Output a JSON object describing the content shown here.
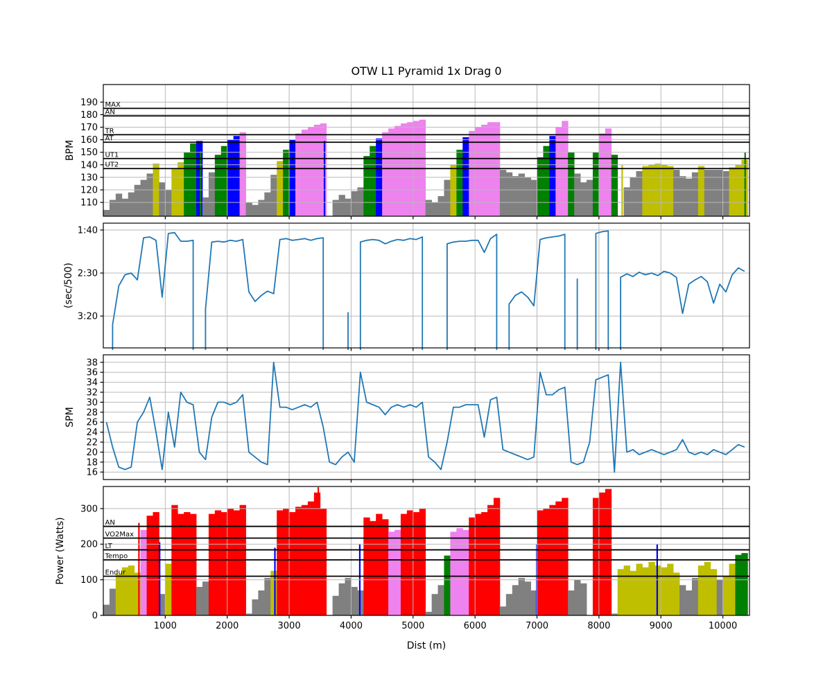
{
  "title": "OTW L1 Pyramid 1x Drag 0",
  "xlabel": "Dist (m)",
  "xlim": [
    0,
    10430
  ],
  "x_ticks": [
    1000,
    2000,
    3000,
    4000,
    5000,
    6000,
    7000,
    8000,
    9000,
    10000
  ],
  "bin_width_m": 100,
  "colors": {
    "zone_colors": [
      "#808080",
      "#bfbf00",
      "#008000",
      "#0000ff",
      "#ee82ee",
      "#ff0000"
    ],
    "line": "#1f77b4",
    "grid": "#b8b8b8",
    "threshold": "#000000",
    "spine": "#000000",
    "background": "#ffffff"
  },
  "chart_data": [
    {
      "id": "bpm",
      "type": "bar-zones",
      "ylabel": "BPM",
      "ylim": [
        99,
        204
      ],
      "yticks": [
        110,
        120,
        130,
        140,
        150,
        160,
        170,
        180,
        190
      ],
      "thresholds": [
        {
          "label": "MAX",
          "value": 185
        },
        {
          "label": "AN",
          "value": 179
        },
        {
          "label": "TR",
          "value": 164
        },
        {
          "label": "AT",
          "value": 158
        },
        {
          "label": "UT1",
          "value": 145
        },
        {
          "label": "UT2",
          "value": 137
        }
      ],
      "values": [
        104,
        112,
        117,
        113,
        118,
        124,
        128,
        133,
        141,
        126,
        120,
        137,
        142,
        150,
        157,
        159,
        114,
        134,
        148,
        155,
        160,
        163,
        166,
        110,
        108,
        112,
        118,
        132,
        143,
        152,
        160,
        165,
        168,
        170,
        172,
        173,
        0,
        112,
        116,
        113,
        119,
        122,
        147,
        155,
        161,
        166,
        169,
        171,
        173,
        174,
        175,
        176,
        112,
        110,
        115,
        128,
        140,
        152,
        162,
        167,
        170,
        172,
        174,
        174,
        136,
        134,
        131,
        133,
        130,
        128,
        146,
        155,
        163,
        170,
        175,
        150,
        133,
        126,
        128,
        150,
        165,
        169,
        148,
        0,
        122,
        130,
        135,
        139,
        140,
        141,
        140,
        139,
        136,
        131,
        129,
        134,
        139,
        136,
        136,
        136,
        135,
        138,
        140,
        144
      ],
      "spikes": [
        {
          "x": 1570,
          "v": 151
        },
        {
          "x": 3570,
          "v": 159
        },
        {
          "x": 8375,
          "v": 140
        },
        {
          "x": 10360,
          "v": 150
        }
      ]
    },
    {
      "id": "pace",
      "type": "line",
      "ylabel": "(sec/500)",
      "ylim": [
        92,
        237
      ],
      "inverted": true,
      "drop_to_bottom": true,
      "yticks": [
        {
          "v": 100,
          "label": "1:40"
        },
        {
          "v": 150,
          "label": "2:30"
        },
        {
          "v": 200,
          "label": "3:20"
        }
      ],
      "values": [
        null,
        210,
        165,
        152,
        150,
        158,
        109,
        108,
        112,
        178,
        104,
        103,
        113,
        113,
        112,
        null,
        192,
        114,
        113,
        114,
        112,
        113,
        111,
        172,
        183,
        176,
        171,
        174,
        111,
        110,
        112,
        111,
        110,
        112,
        110,
        109,
        null,
        null,
        null,
        196,
        null,
        114,
        112,
        111,
        112,
        116,
        113,
        111,
        112,
        110,
        111,
        108,
        null,
        null,
        null,
        116,
        114,
        113,
        113,
        112,
        112,
        126,
        110,
        105,
        null,
        186,
        176,
        172,
        178,
        188,
        111,
        109,
        108,
        107,
        105,
        null,
        157,
        null,
        null,
        104,
        102,
        101,
        null,
        155,
        151,
        154,
        149,
        152,
        150,
        153,
        148,
        150,
        155,
        197,
        163,
        158,
        154,
        160,
        185,
        163,
        172,
        152,
        144,
        148
      ]
    },
    {
      "id": "spm",
      "type": "line",
      "ylabel": "SPM",
      "ylim": [
        14.5,
        39.5
      ],
      "yticks": [
        16,
        18,
        20,
        22,
        24,
        26,
        28,
        30,
        32,
        34,
        36,
        38
      ],
      "values": [
        26,
        21,
        17,
        16.5,
        17,
        26,
        28,
        31,
        24,
        16.5,
        28,
        21,
        32,
        30,
        29.5,
        20,
        18.5,
        27,
        30,
        30,
        29.5,
        30,
        31.5,
        20,
        19,
        18,
        17.5,
        38,
        29,
        29,
        28.5,
        29,
        29.5,
        29,
        30,
        25,
        18,
        17.5,
        19,
        20,
        18,
        36,
        30,
        29.5,
        29,
        27.5,
        29,
        29.5,
        29,
        29.5,
        29,
        30,
        19,
        18,
        16.5,
        22,
        29,
        29,
        29.5,
        29.5,
        29.5,
        23,
        30.5,
        31,
        20.5,
        20,
        19.5,
        19,
        18.5,
        19,
        36,
        31.5,
        31.5,
        32.5,
        33,
        18,
        17.5,
        18,
        22,
        34.5,
        35,
        35.5,
        16,
        38,
        20,
        20.5,
        19.5,
        20,
        20.5,
        20,
        19.5,
        20,
        20.5,
        22.5,
        20,
        19.5,
        20,
        19.5,
        20.5,
        20,
        19.5,
        20.5,
        21.5,
        21
      ]
    },
    {
      "id": "power",
      "type": "bar-zones",
      "ylabel": "Power (Watts)",
      "ylim": [
        0,
        362
      ],
      "yticks": [
        0,
        100,
        200,
        300
      ],
      "thresholds": [
        {
          "label": "AN",
          "value": 250
        },
        {
          "label": "VO2Max",
          "value": 217
        },
        {
          "label": "LT",
          "value": 184
        },
        {
          "label": "Tempo",
          "value": 156
        },
        {
          "label": "Endur",
          "value": 110
        }
      ],
      "values": [
        30,
        75,
        115,
        135,
        140,
        120,
        240,
        280,
        290,
        60,
        145,
        310,
        285,
        290,
        285,
        80,
        95,
        285,
        295,
        290,
        300,
        295,
        310,
        5,
        45,
        70,
        105,
        125,
        295,
        300,
        290,
        305,
        310,
        320,
        345,
        300,
        0,
        55,
        90,
        105,
        80,
        70,
        275,
        265,
        285,
        270,
        235,
        240,
        285,
        295,
        290,
        300,
        10,
        60,
        85,
        168,
        235,
        245,
        240,
        275,
        285,
        290,
        310,
        330,
        25,
        60,
        85,
        105,
        95,
        70,
        295,
        300,
        310,
        320,
        330,
        70,
        100,
        90,
        0,
        330,
        345,
        355,
        5,
        130,
        140,
        125,
        145,
        135,
        150,
        140,
        135,
        145,
        120,
        85,
        70,
        105,
        140,
        150,
        130,
        100,
        110,
        145,
        170,
        175
      ],
      "spikes": [
        {
          "x": 575,
          "v": 260
        },
        {
          "x": 909,
          "v": 205
        },
        {
          "x": 2770,
          "v": 190
        },
        {
          "x": 3470,
          "v": 360
        },
        {
          "x": 4140,
          "v": 200
        },
        {
          "x": 6998,
          "v": 200
        },
        {
          "x": 8940,
          "v": 200
        }
      ]
    }
  ]
}
